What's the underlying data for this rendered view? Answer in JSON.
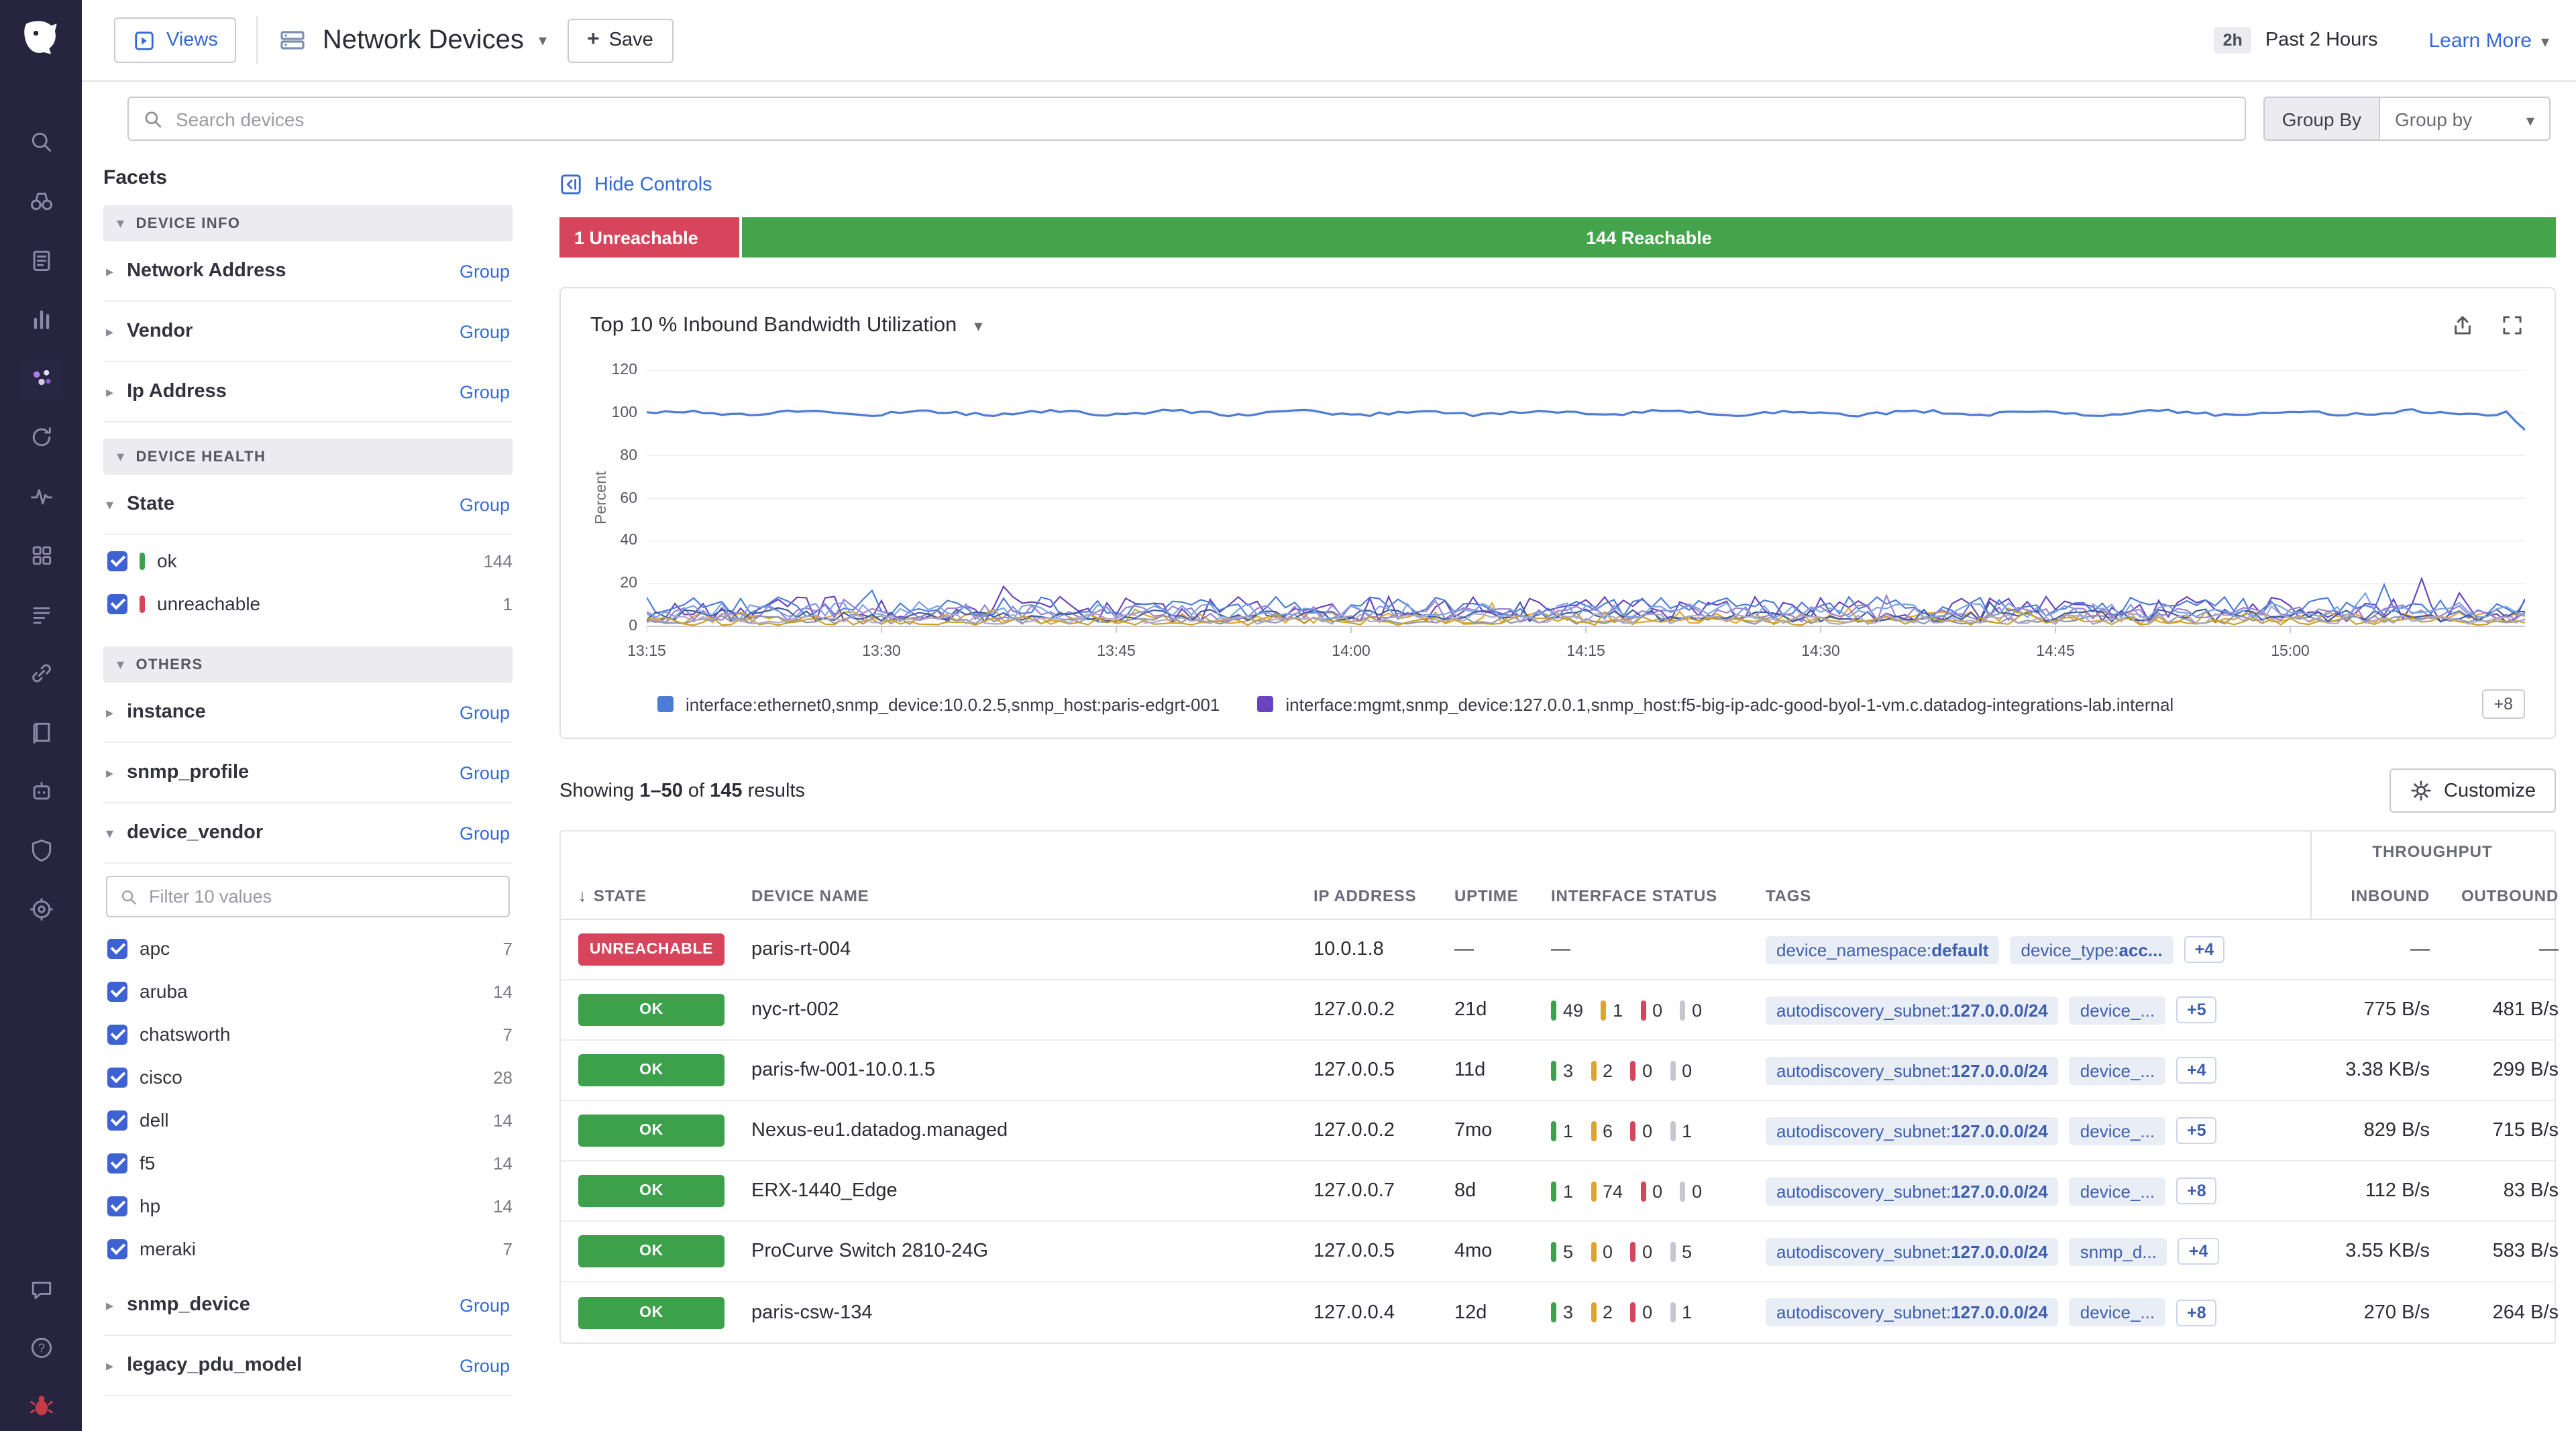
{
  "colors": {
    "link_blue": "#3569d6",
    "red": "#d6455c",
    "green": "#3da14c",
    "warn_yellow": "#e0a32e",
    "gray_bar": "#c6c6cf",
    "sidebar_bg": "#272440"
  },
  "topbar": {
    "views_label": "Views",
    "title": "Network Devices",
    "save_label": "Save",
    "time_range_badge": "2h",
    "time_range_label": "Past 2 Hours",
    "learn_more_label": "Learn More"
  },
  "search": {
    "placeholder": "Search devices",
    "group_by_button": "Group By",
    "group_by_value": "Group by"
  },
  "controls": {
    "hide_controls_label": "Hide Controls"
  },
  "status_bar": {
    "unreachable_label": "1 Unreachable",
    "reachable_label": "144 Reachable"
  },
  "facets": {
    "title": "Facets",
    "group_link": "Group",
    "device_info_header": "DEVICE INFO",
    "device_info_items": [
      "Network Address",
      "Vendor",
      "Ip Address"
    ],
    "device_health_header": "DEVICE HEALTH",
    "state_label": "State",
    "state_values": [
      {
        "label": "ok",
        "count": "144",
        "bar_color": "#3da14c",
        "checked": true
      },
      {
        "label": "unreachable",
        "count": "1",
        "bar_color": "#d6455c",
        "checked": true
      }
    ],
    "others_header": "OTHERS",
    "others_items": [
      "instance",
      "snmp_profile"
    ],
    "device_vendor_label": "device_vendor",
    "vendor_filter_placeholder": "Filter 10 values",
    "vendor_values": [
      {
        "label": "apc",
        "count": "7",
        "checked": true
      },
      {
        "label": "aruba",
        "count": "14",
        "checked": true
      },
      {
        "label": "chatsworth",
        "count": "7",
        "checked": true
      },
      {
        "label": "cisco",
        "count": "28",
        "checked": true
      },
      {
        "label": "dell",
        "count": "14",
        "checked": true
      },
      {
        "label": "f5",
        "count": "14",
        "checked": true
      },
      {
        "label": "hp",
        "count": "14",
        "checked": true
      },
      {
        "label": "meraki",
        "count": "7",
        "checked": true
      }
    ],
    "trailing_items": [
      "snmp_device",
      "legacy_pdu_model"
    ]
  },
  "chart_data": {
    "type": "line",
    "title": "Top 10 % Inbound Bandwidth Utilization",
    "ylabel": "Percent",
    "ylim": [
      0,
      120
    ],
    "yticks": [
      0,
      20,
      40,
      60,
      80,
      100,
      120
    ],
    "xticks": [
      "13:15",
      "13:30",
      "13:45",
      "14:00",
      "14:15",
      "14:30",
      "14:45",
      "15:00"
    ],
    "grid": true,
    "legend_position": "bottom",
    "legend": [
      {
        "label": "interface:ethernet0,snmp_device:10.0.2.5,snmp_host:paris-edgrt-001",
        "color": "#4d7cd6"
      },
      {
        "label": "interface:mgmt,snmp_device:127.0.0.1,snmp_host:f5-big-ip-adc-good-byol-1-vm.c.datadog-integrations-lab.internal",
        "color": "#6a43bf"
      }
    ],
    "legend_more": "+8",
    "series": [
      {
        "label": "interface:ethernet0,snmp_device:10.0.2.5,snmp_host:paris-edgrt-001",
        "color": "#4d7cd6",
        "base": 100,
        "amplitude": 0.8,
        "wave": true,
        "end_drop": 92
      },
      {
        "label": "interface:mgmt,snmp_device:127.0.0.1,snmp_host:f5-big-ip-adc-good-byol-1-vm.c.datadog-integrations-lab.internal",
        "color": "#6a43bf",
        "base": 8,
        "amplitude": 6
      },
      {
        "label": "",
        "color": "#e0a32e",
        "base": 4,
        "amplitude": 3
      },
      {
        "label": "",
        "color": "#8e95a5",
        "base": 3,
        "amplitude": 2
      },
      {
        "label": "",
        "color": "#4d7cd6",
        "base": 9,
        "amplitude": 5
      },
      {
        "label": "",
        "color": "#9b7fd4",
        "base": 6,
        "amplitude": 4
      },
      {
        "label": "",
        "color": "#3d5a9e",
        "base": 5,
        "amplitude": 3
      },
      {
        "label": "",
        "color": "#c9a227",
        "base": 2.5,
        "amplitude": 2
      },
      {
        "label": "",
        "color": "#7ba3e0",
        "base": 7,
        "amplitude": 4
      },
      {
        "label": "",
        "color": "#b0a6c9",
        "base": 3.5,
        "amplitude": 2.5
      }
    ]
  },
  "results": {
    "prefix": "Showing",
    "range": "1–50",
    "of_word": "of",
    "total": "145",
    "suffix": "results",
    "customize_label": "Customize"
  },
  "table": {
    "group_header": "THROUGHPUT",
    "columns": [
      "STATE",
      "DEVICE NAME",
      "IP ADDRESS",
      "UPTIME",
      "INTERFACE STATUS",
      "TAGS",
      "INBOUND",
      "OUTBOUND"
    ],
    "empty_value": "—",
    "rows": [
      {
        "state": "UNREACHABLE",
        "state_type": "unreachable",
        "device_name": "paris-rt-004",
        "ip_address": "10.0.1.8",
        "uptime": "—",
        "interface_status": null,
        "tags": [
          {
            "key": "device_namespace",
            "value": "default"
          },
          {
            "key": "device_type",
            "value": "acc..."
          }
        ],
        "tags_more": "+4",
        "inbound": "—",
        "outbound": "—"
      },
      {
        "state": "OK",
        "state_type": "ok",
        "device_name": "nyc-rt-002",
        "ip_address": "127.0.0.2",
        "uptime": "21d",
        "interface_status": [
          {
            "count": "49",
            "status": "up"
          },
          {
            "count": "1",
            "status": "warn"
          },
          {
            "count": "0",
            "status": "down"
          },
          {
            "count": "0",
            "status": "off"
          }
        ],
        "tags": [
          {
            "key": "autodiscovery_subnet",
            "value": "127.0.0.0/24"
          },
          {
            "key": "device_...",
            "value": null
          }
        ],
        "tags_more": "+5",
        "inbound": "775 B/s",
        "outbound": "481 B/s"
      },
      {
        "state": "OK",
        "state_type": "ok",
        "device_name": "paris-fw-001-10.0.1.5",
        "ip_address": "127.0.0.5",
        "uptime": "11d",
        "interface_status": [
          {
            "count": "3",
            "status": "up"
          },
          {
            "count": "2",
            "status": "warn"
          },
          {
            "count": "0",
            "status": "down"
          },
          {
            "count": "0",
            "status": "off"
          }
        ],
        "tags": [
          {
            "key": "autodiscovery_subnet",
            "value": "127.0.0.0/24"
          },
          {
            "key": "device_...",
            "value": null
          }
        ],
        "tags_more": "+4",
        "inbound": "3.38 KB/s",
        "outbound": "299 B/s"
      },
      {
        "state": "OK",
        "state_type": "ok",
        "device_name": "Nexus-eu1.datadog.managed",
        "ip_address": "127.0.0.2",
        "uptime": "7mo",
        "interface_status": [
          {
            "count": "1",
            "status": "up"
          },
          {
            "count": "6",
            "status": "warn"
          },
          {
            "count": "0",
            "status": "down"
          },
          {
            "count": "1",
            "status": "off"
          }
        ],
        "tags": [
          {
            "key": "autodiscovery_subnet",
            "value": "127.0.0.0/24"
          },
          {
            "key": "device_...",
            "value": null
          }
        ],
        "tags_more": "+5",
        "inbound": "829 B/s",
        "outbound": "715 B/s"
      },
      {
        "state": "OK",
        "state_type": "ok",
        "device_name": "ERX-1440_Edge",
        "ip_address": "127.0.0.7",
        "uptime": "8d",
        "interface_status": [
          {
            "count": "1",
            "status": "up"
          },
          {
            "count": "74",
            "status": "warn"
          },
          {
            "count": "0",
            "status": "down"
          },
          {
            "count": "0",
            "status": "off"
          }
        ],
        "tags": [
          {
            "key": "autodiscovery_subnet",
            "value": "127.0.0.0/24"
          },
          {
            "key": "device_...",
            "value": null
          }
        ],
        "tags_more": "+8",
        "inbound": "112 B/s",
        "outbound": "83 B/s"
      },
      {
        "state": "OK",
        "state_type": "ok",
        "device_name": "ProCurve Switch 2810-24G",
        "ip_address": "127.0.0.5",
        "uptime": "4mo",
        "interface_status": [
          {
            "count": "5",
            "status": "up"
          },
          {
            "count": "0",
            "status": "warn"
          },
          {
            "count": "0",
            "status": "down"
          },
          {
            "count": "5",
            "status": "off"
          }
        ],
        "tags": [
          {
            "key": "autodiscovery_subnet",
            "value": "127.0.0.0/24"
          },
          {
            "key": "snmp_d...",
            "value": null
          }
        ],
        "tags_more": "+4",
        "inbound": "3.55 KB/s",
        "outbound": "583 B/s"
      },
      {
        "state": "OK",
        "state_type": "ok",
        "device_name": "paris-csw-134",
        "ip_address": "127.0.0.4",
        "uptime": "12d",
        "interface_status": [
          {
            "count": "3",
            "status": "up"
          },
          {
            "count": "2",
            "status": "warn"
          },
          {
            "count": "0",
            "status": "down"
          },
          {
            "count": "1",
            "status": "off"
          }
        ],
        "tags": [
          {
            "key": "autodiscovery_subnet",
            "value": "127.0.0.0/24"
          },
          {
            "key": "device_...",
            "value": null
          }
        ],
        "tags_more": "+8",
        "inbound": "270 B/s",
        "outbound": "264 B/s"
      }
    ]
  }
}
